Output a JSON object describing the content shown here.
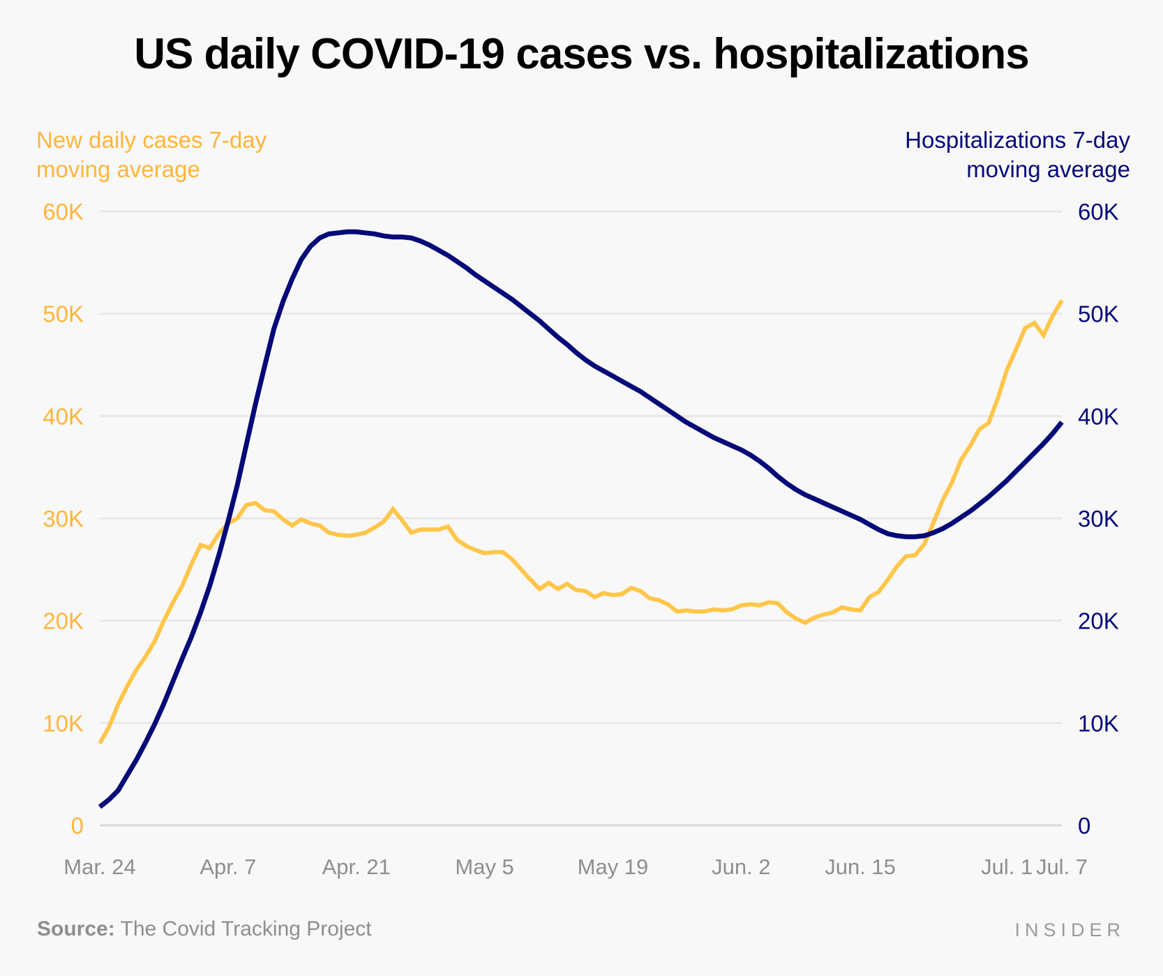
{
  "title": "US daily COVID-19 cases vs. hospitalizations",
  "source_label": "Source:",
  "source_text": "The Covid Tracking Project",
  "brand": "INSIDER",
  "chart_data": {
    "type": "line",
    "title": "US daily COVID-19 cases vs. hospitalizations",
    "y_left_label": [
      "New daily cases 7-day",
      "moving average"
    ],
    "y_right_label": [
      "Hospitalizations 7-day",
      "moving average"
    ],
    "ylim": [
      0,
      60000
    ],
    "y_ticks": [
      0,
      10000,
      20000,
      30000,
      40000,
      50000,
      60000
    ],
    "y_tick_labels": [
      "0",
      "10K",
      "20K",
      "30K",
      "40K",
      "50K",
      "60K"
    ],
    "x_start": "Mar. 24",
    "x_days": 105,
    "x_ticks": [
      {
        "label": "Mar. 24",
        "day": 0
      },
      {
        "label": "Apr. 7",
        "day": 14
      },
      {
        "label": "Apr. 21",
        "day": 28
      },
      {
        "label": "May 5",
        "day": 42
      },
      {
        "label": "May 19",
        "day": 56
      },
      {
        "label": "Jun. 2",
        "day": 70
      },
      {
        "label": "Jun. 15",
        "day": 83
      },
      {
        "label": "Jul. 1",
        "day": 99
      },
      {
        "label": "Jul. 7",
        "day": 105
      }
    ],
    "grid": true,
    "series": [
      {
        "name": "New daily cases 7-day moving average",
        "axis": "left",
        "color": "#ffc64a",
        "values": [
          8000,
          9600,
          11800,
          13600,
          15200,
          16500,
          18000,
          20000,
          21800,
          23400,
          25500,
          27400,
          27100,
          28500,
          29500,
          30000,
          31300,
          31500,
          30800,
          30700,
          29900,
          29300,
          29900,
          29500,
          29300,
          28600,
          28400,
          28300,
          28400,
          28600,
          29100,
          29700,
          30900,
          29800,
          28600,
          28900,
          28900,
          28900,
          29200,
          27900,
          27300,
          26900,
          26600,
          26700,
          26700,
          26000,
          25000,
          24000,
          23100,
          23700,
          23100,
          23600,
          23000,
          22900,
          22300,
          22700,
          22500,
          22600,
          23200,
          22900,
          22200,
          22000,
          21600,
          20900,
          21000,
          20900,
          20900,
          21100,
          21000,
          21100,
          21500,
          21600,
          21500,
          21800,
          21700,
          20800,
          20200,
          19800,
          20300,
          20600,
          20800,
          21300,
          21100,
          21000,
          22300,
          22800,
          24000,
          25300,
          26300,
          26400,
          27500,
          29600,
          31800,
          33500,
          35700,
          37100,
          38700,
          39300,
          41700,
          44500,
          46500,
          48600,
          49100,
          47900,
          49800,
          51300
        ]
      },
      {
        "name": "Hospitalizations 7-day moving average",
        "axis": "right",
        "color": "#050a78",
        "values": [
          1800,
          2500,
          3400,
          4900,
          6400,
          8100,
          9900,
          11900,
          14100,
          16300,
          18400,
          20800,
          23400,
          26400,
          29700,
          33200,
          37200,
          41200,
          44900,
          48500,
          51200,
          53400,
          55300,
          56600,
          57400,
          57800,
          57900,
          58000,
          58000,
          57900,
          57800,
          57600,
          57500,
          57500,
          57400,
          57100,
          56700,
          56200,
          55700,
          55100,
          54500,
          53800,
          53200,
          52600,
          52000,
          51400,
          50700,
          50000,
          49300,
          48500,
          47700,
          47000,
          46200,
          45500,
          44900,
          44400,
          43900,
          43400,
          42900,
          42400,
          41800,
          41200,
          40600,
          40000,
          39400,
          38900,
          38400,
          37900,
          37500,
          37100,
          36700,
          36200,
          35600,
          34900,
          34100,
          33400,
          32800,
          32300,
          31900,
          31500,
          31100,
          30700,
          30300,
          29900,
          29400,
          28900,
          28500,
          28300,
          28200,
          28200,
          28300,
          28600,
          29000,
          29500,
          30100,
          30700,
          31400,
          32100,
          32900,
          33700,
          34600,
          35500,
          36400,
          37300,
          38300,
          39400
        ]
      }
    ]
  }
}
